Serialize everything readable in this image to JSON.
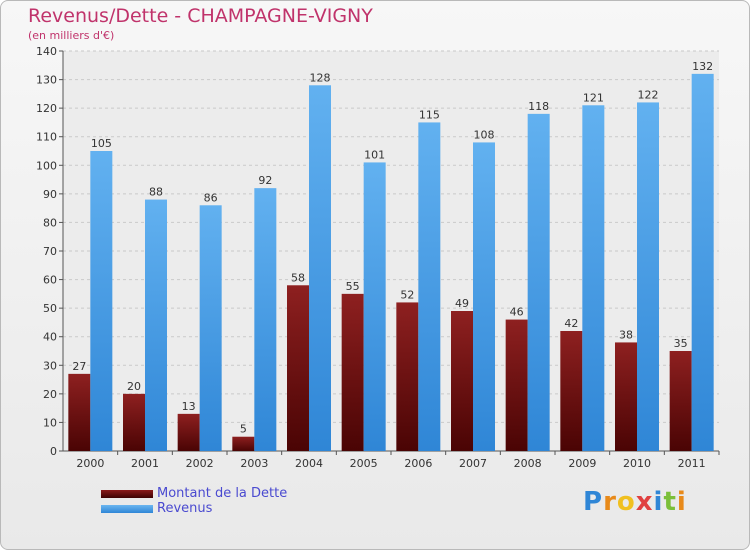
{
  "chart_data": {
    "type": "bar",
    "title": "Revenus/Dette - CHAMPAGNE-VIGNY",
    "subtitle": "(en milliers d'€)",
    "categories": [
      "2000",
      "2001",
      "2002",
      "2003",
      "2004",
      "2005",
      "2006",
      "2007",
      "2008",
      "2009",
      "2010",
      "2011"
    ],
    "series": [
      {
        "name": "Montant de la Dette",
        "color": "#6e0e0e",
        "values": [
          27,
          20,
          13,
          5,
          58,
          55,
          52,
          49,
          46,
          42,
          38,
          35
        ]
      },
      {
        "name": "Revenus",
        "color": "#4fa3e8",
        "values": [
          105,
          88,
          86,
          92,
          128,
          101,
          115,
          108,
          118,
          121,
          122,
          132
        ]
      }
    ],
    "ylim": [
      0,
      140
    ],
    "yticks": [
      0,
      10,
      20,
      30,
      40,
      50,
      60,
      70,
      80,
      90,
      100,
      110,
      120,
      130,
      140
    ],
    "grid": true,
    "legend_position": "bottom-left"
  },
  "logo": {
    "text": "Proxiti"
  }
}
